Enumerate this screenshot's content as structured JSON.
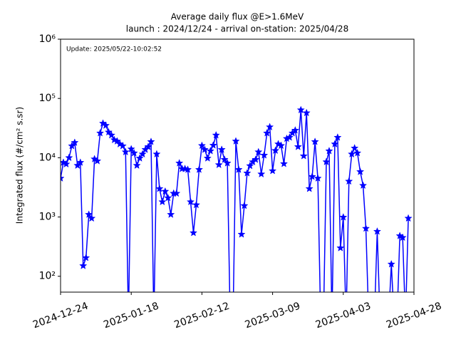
{
  "chart_data": {
    "type": "line",
    "title": "Average daily flux @E>1.6MeV",
    "subtitle": "launch : 2024/12/24 - arrival on-station: 2025/04/28",
    "annotation": "Update: 2025/05/22-10:02:52",
    "ylabel": "Integrated flux (#/cm² s.sr)",
    "log_y": true,
    "xlim": [
      "2024-12-24",
      "2025-04-28"
    ],
    "xticks": [
      "2024-12-24",
      "2025-01-18",
      "2025-02-12",
      "2025-03-09",
      "2025-04-03",
      "2025-04-28"
    ],
    "ylim": [
      54,
      1000000
    ],
    "yticks": [
      {
        "value": 100,
        "label": "10²"
      },
      {
        "value": 1000,
        "label": "10³"
      },
      {
        "value": 10000,
        "label": "10⁴"
      },
      {
        "value": 100000,
        "label": "10⁵"
      },
      {
        "value": 1000000,
        "label": "10⁶"
      }
    ],
    "x": [
      "2024-12-24",
      "2024-12-25",
      "2024-12-26",
      "2024-12-27",
      "2024-12-28",
      "2024-12-29",
      "2024-12-30",
      "2024-12-31",
      "2025-01-01",
      "2025-01-02",
      "2025-01-03",
      "2025-01-04",
      "2025-01-05",
      "2025-01-06",
      "2025-01-07",
      "2025-01-08",
      "2025-01-09",
      "2025-01-10",
      "2025-01-11",
      "2025-01-12",
      "2025-01-13",
      "2025-01-14",
      "2025-01-15",
      "2025-01-16",
      "2025-01-17",
      "2025-01-18",
      "2025-01-19",
      "2025-01-20",
      "2025-01-21",
      "2025-01-22",
      "2025-01-23",
      "2025-01-24",
      "2025-01-25",
      "2025-01-26",
      "2025-01-27",
      "2025-01-28",
      "2025-01-29",
      "2025-01-30",
      "2025-01-31",
      "2025-02-01",
      "2025-02-02",
      "2025-02-03",
      "2025-02-04",
      "2025-02-05",
      "2025-02-06",
      "2025-02-07",
      "2025-02-08",
      "2025-02-09",
      "2025-02-10",
      "2025-02-11",
      "2025-02-12",
      "2025-02-13",
      "2025-02-14",
      "2025-02-15",
      "2025-02-16",
      "2025-02-17",
      "2025-02-18",
      "2025-02-19",
      "2025-02-20",
      "2025-02-21",
      "2025-02-22",
      "2025-02-23",
      "2025-02-24",
      "2025-02-25",
      "2025-02-26",
      "2025-02-27",
      "2025-02-28",
      "2025-03-01",
      "2025-03-02",
      "2025-03-03",
      "2025-03-04",
      "2025-03-05",
      "2025-03-06",
      "2025-03-07",
      "2025-03-08",
      "2025-03-09",
      "2025-03-10",
      "2025-03-11",
      "2025-03-12",
      "2025-03-13",
      "2025-03-14",
      "2025-03-15",
      "2025-03-16",
      "2025-03-17",
      "2025-03-18",
      "2025-03-19",
      "2025-03-20",
      "2025-03-21",
      "2025-03-22",
      "2025-03-23",
      "2025-03-24",
      "2025-03-25",
      "2025-03-26",
      "2025-03-27",
      "2025-03-28",
      "2025-03-29",
      "2025-03-30",
      "2025-03-31",
      "2025-04-01",
      "2025-04-02",
      "2025-04-03",
      "2025-04-04",
      "2025-04-05",
      "2025-04-06",
      "2025-04-07",
      "2025-04-08",
      "2025-04-09",
      "2025-04-10",
      "2025-04-11",
      "2025-04-12",
      "2025-04-13",
      "2025-04-14",
      "2025-04-15",
      "2025-04-16",
      "2025-04-17",
      "2025-04-18",
      "2025-04-19",
      "2025-04-20",
      "2025-04-21",
      "2025-04-22",
      "2025-04-23",
      "2025-04-24",
      "2025-04-25",
      "2025-04-26"
    ],
    "series": [
      {
        "color": "#0000ff",
        "values": [
          4500,
          8300,
          7800,
          10000,
          15800,
          18000,
          7400,
          8300,
          150,
          205,
          1100,
          950,
          9500,
          8800,
          26000,
          38000,
          35000,
          27000,
          24000,
          20000,
          19000,
          17000,
          15800,
          12500,
          0,
          14000,
          12000,
          7400,
          9800,
          11500,
          13700,
          15300,
          18600,
          0,
          11500,
          3000,
          1800,
          2700,
          2100,
          1100,
          2500,
          2500,
          8100,
          6500,
          6500,
          6300,
          1800,
          540,
          1600,
          6300,
          16000,
          13700,
          9800,
          13000,
          16200,
          24000,
          7600,
          13700,
          9300,
          8100,
          0,
          0,
          19000,
          6300,
          510,
          1550,
          5500,
          7300,
          8500,
          9300,
          12500,
          5300,
          11000,
          26000,
          33000,
          6000,
          13200,
          17000,
          16000,
          7900,
          21000,
          22000,
          26000,
          29000,
          15300,
          64000,
          10700,
          57000,
          3000,
          4800,
          18600,
          4500,
          0,
          0,
          8500,
          13000,
          0,
          17000,
          22000,
          300,
          990,
          0,
          4000,
          11500,
          14500,
          12000,
          5800,
          3400,
          640,
          0,
          0,
          0,
          570,
          0,
          0,
          0,
          0,
          160,
          0,
          0,
          480,
          450,
          0,
          950
        ]
      }
    ]
  }
}
